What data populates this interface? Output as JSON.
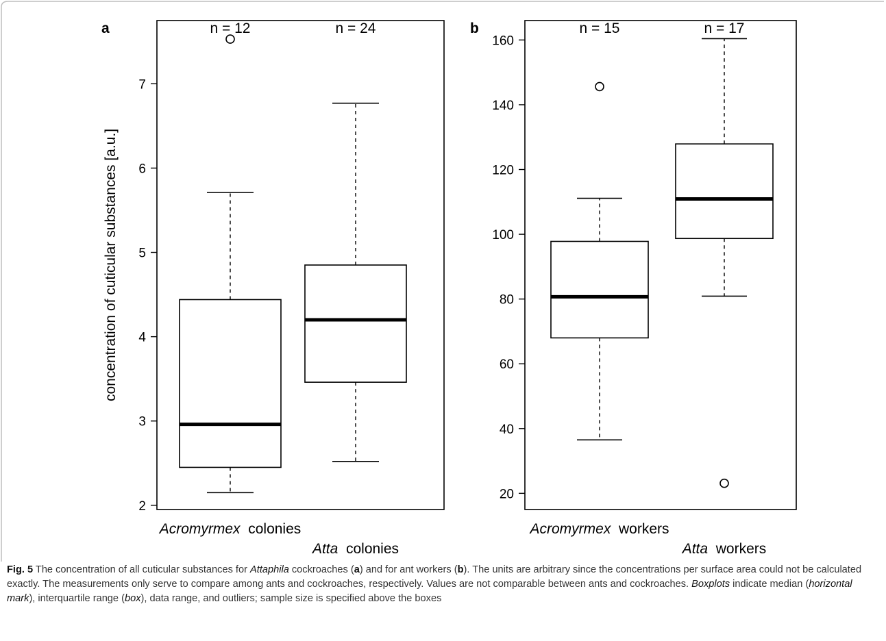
{
  "chart_data": [
    {
      "type": "boxplot",
      "panel_label": "a",
      "ylabel": "concentration of cuticular substances [a.u.]",
      "ylim": [
        1.95,
        7.75
      ],
      "yticks": [
        2,
        3,
        4,
        5,
        6,
        7
      ],
      "categories": [
        {
          "italic": "Acromyrmex",
          "plain": "colonies"
        },
        {
          "italic": "Atta",
          "plain": "colonies"
        }
      ],
      "sample_sizes": [
        "n = 12",
        "n = 24"
      ],
      "boxes": [
        {
          "whisker_low": 2.15,
          "q1": 2.45,
          "median": 2.96,
          "q3": 4.44,
          "whisker_high": 5.71,
          "outliers": [
            7.53
          ]
        },
        {
          "whisker_low": 2.52,
          "q1": 3.46,
          "median": 4.2,
          "q3": 4.85,
          "whisker_high": 6.77,
          "outliers": []
        }
      ]
    },
    {
      "type": "boxplot",
      "panel_label": "b",
      "ylabel": "",
      "ylim": [
        15,
        166
      ],
      "yticks": [
        20,
        40,
        60,
        80,
        100,
        120,
        140,
        160
      ],
      "categories": [
        {
          "italic": "Acromyrmex",
          "plain": "workers"
        },
        {
          "italic": "Atta",
          "plain": "workers"
        }
      ],
      "sample_sizes": [
        "n = 15",
        "n = 17"
      ],
      "boxes": [
        {
          "whisker_low": 36.5,
          "q1": 68.0,
          "median": 80.7,
          "q3": 97.8,
          "whisker_high": 111.1,
          "outliers": [
            145.6
          ]
        },
        {
          "whisker_low": 80.9,
          "q1": 98.7,
          "median": 110.9,
          "q3": 127.9,
          "whisker_high": 160.4,
          "outliers": [
            23.1
          ]
        }
      ]
    }
  ],
  "caption": {
    "fig_label": "Fig. 5",
    "p1": " The concentration of all cuticular substances for ",
    "p1_italic": "Attaphila",
    "p2": " cockroaches (",
    "p2_bold": "a",
    "p3": ") and for ant workers (",
    "p3_bold": "b",
    "p4": "). The units are arbitrary since the concentrations per surface area could not be calculated exactly. The measurements only serve to compare among ants and cockroaches, respectively. Values are not comparable between ants and cockroaches. ",
    "p4_italic": "Boxplots",
    "p5": " indicate median (",
    "p5_italic": "horizontal mark",
    "p6": "), interquartile range (",
    "p6_italic": "box",
    "p7": "), data range, and outliers; sample size is specified above the boxes"
  }
}
